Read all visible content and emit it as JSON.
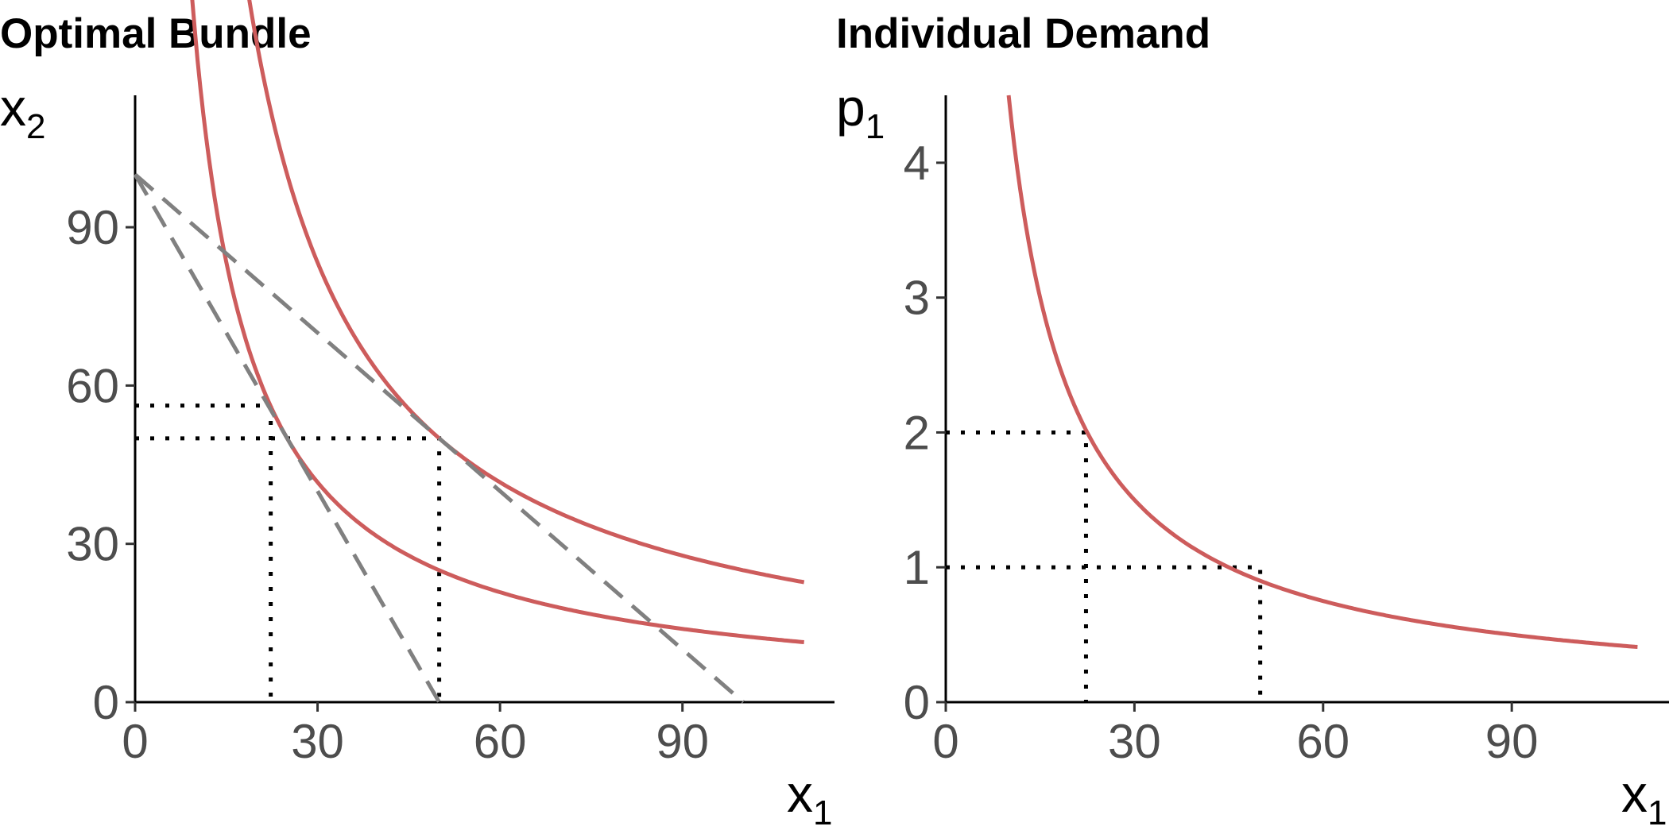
{
  "chart_data": [
    {
      "type": "line",
      "title": "Optimal Bundle",
      "xlabel": {
        "base": "x",
        "sub": "1"
      },
      "ylabel": {
        "base": "x",
        "sub": "2"
      },
      "xlim": [
        0,
        115
      ],
      "ylim": [
        0,
        115
      ],
      "xticks": [
        "0",
        "30",
        "60",
        "90"
      ],
      "yticks": [
        "0",
        "30",
        "60",
        "90"
      ],
      "xtick_values": [
        0,
        30,
        60,
        90
      ],
      "ytick_values": [
        0,
        30,
        60,
        90
      ],
      "grid": false,
      "line_color": "#cd5c5c",
      "budget_color": "#808080",
      "series": [
        {
          "kind": "indifference",
          "style": "solid",
          "x_from": 7,
          "x_to": 110,
          "k": 1250
        },
        {
          "kind": "indifference",
          "style": "solid",
          "x_from": 18,
          "x_to": 110,
          "k": 2500
        },
        {
          "kind": "budget",
          "style": "dashed",
          "x": [
            0,
            50
          ],
          "y": [
            100,
            0
          ]
        },
        {
          "kind": "budget",
          "style": "dashed",
          "x": [
            0,
            100
          ],
          "y": [
            100,
            0
          ]
        }
      ],
      "guides": [
        {
          "x": 22.3,
          "y": 56.2
        },
        {
          "x": 50,
          "y": 50
        }
      ]
    },
    {
      "type": "line",
      "title": "Individual Demand",
      "xlabel": {
        "base": "x",
        "sub": "1"
      },
      "ylabel": {
        "base": "p",
        "sub": "1"
      },
      "xlim": [
        0,
        115
      ],
      "ylim": [
        0,
        4.5
      ],
      "xticks": [
        "0",
        "30",
        "60",
        "90"
      ],
      "yticks": [
        "0",
        "1",
        "2",
        "3",
        "4"
      ],
      "xtick_values": [
        0,
        30,
        60,
        90
      ],
      "ytick_values": [
        0,
        1,
        2,
        3,
        4
      ],
      "grid": false,
      "line_color": "#cd5c5c",
      "series": [
        {
          "kind": "demand",
          "style": "solid",
          "x_from": 10,
          "x_to": 110,
          "k": 45
        }
      ],
      "guides": [
        {
          "x": 22.3,
          "y": 2
        },
        {
          "x": 50,
          "y": 1
        }
      ]
    }
  ]
}
